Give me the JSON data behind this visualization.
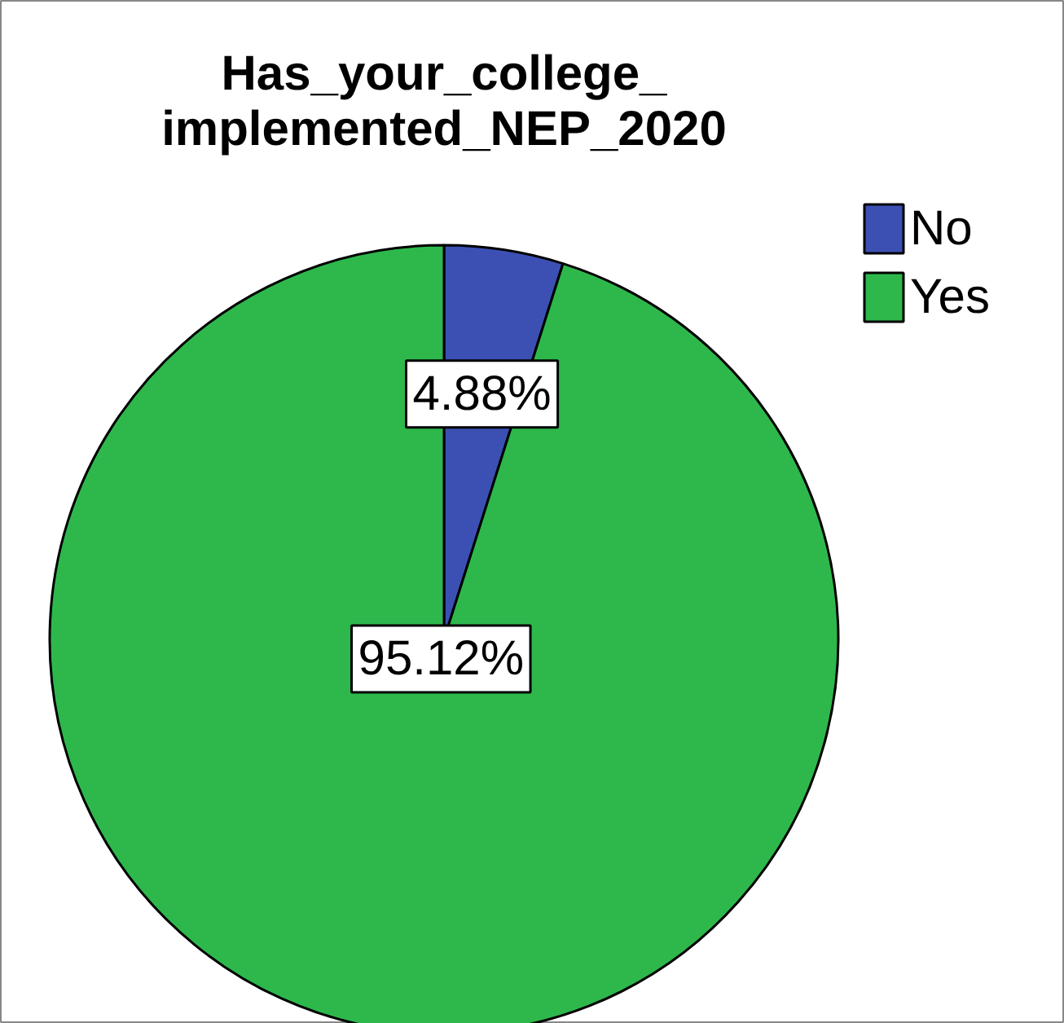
{
  "chart_data": {
    "type": "pie",
    "title": "Has_your_college_\nimplemented_NEP_2020",
    "categories": [
      "No",
      "Yes"
    ],
    "values": [
      4.88,
      95.12
    ],
    "colors": [
      "#3c50b4",
      "#2eb84c"
    ],
    "value_labels": [
      "4.88%",
      "95.12%"
    ],
    "legend": "top right"
  }
}
